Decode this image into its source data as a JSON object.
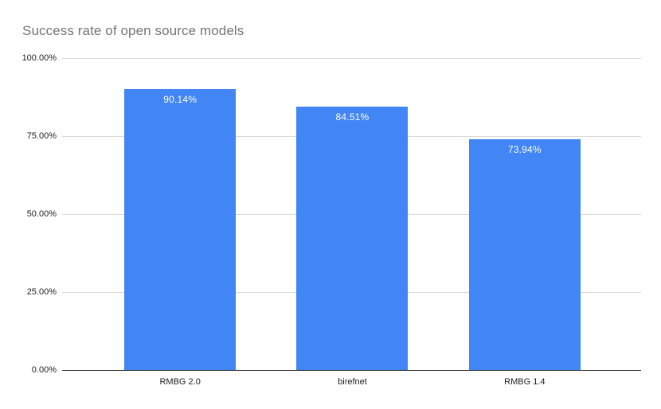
{
  "chart_data": {
    "type": "bar",
    "title": "Success rate of open source models",
    "categories": [
      "RMBG 2.0",
      "birefnet",
      "RMBG 1.4"
    ],
    "values": [
      90.14,
      84.51,
      73.94
    ],
    "display_values": [
      "90.14%",
      "84.51%",
      "73.94%"
    ],
    "xlabel": "",
    "ylabel": "",
    "ylim": [
      0,
      100
    ],
    "y_ticks": [
      "100.00%",
      "75.00%",
      "50.00%",
      "25.00%",
      "0.00%"
    ],
    "grid": true,
    "legend": "none",
    "colors": {
      "bar": "#4285f4",
      "value_label": "#ffffff",
      "title": "#757575",
      "gridline": "#d9d9d9",
      "axis_line": "#333333",
      "tick_label": "#222222"
    }
  }
}
